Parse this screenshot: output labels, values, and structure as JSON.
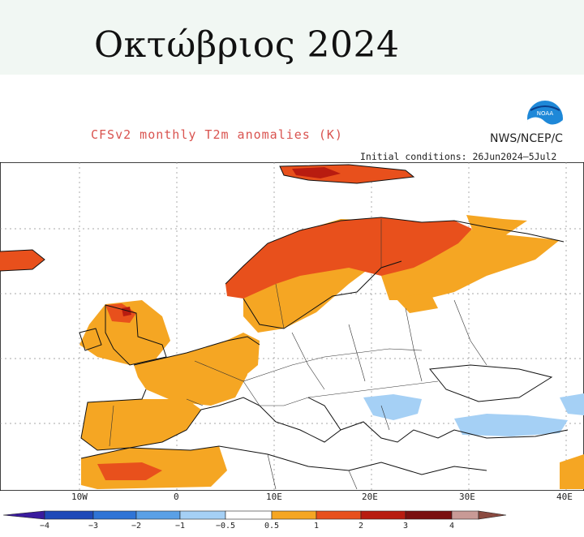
{
  "banner": {
    "title": "Οκτώβριος 2024"
  },
  "chart": {
    "title": "CFSv2 monthly T2m anomalies (K)",
    "agency": "NWS/NCEP/C",
    "initial_conditions": "Initial conditions: 26Jun2024–5Jul2"
  },
  "logo": {
    "name": "noaa-logo",
    "text": "NOAA"
  },
  "map": {
    "region": "Europe",
    "grid": true,
    "longitude_labels": [
      "10W",
      "0",
      "10E",
      "20E",
      "30E",
      "40E"
    ],
    "anomalies": [
      {
        "area": "Scandinavia",
        "category": "2 to 3"
      },
      {
        "area": "Finland / NW Russia",
        "category": "1 to 2"
      },
      {
        "area": "Iceland",
        "category": "2 to 3"
      },
      {
        "area": "Scotland",
        "category": "2 to 3"
      },
      {
        "area": "Ireland / UK",
        "category": "0.5 to 1"
      },
      {
        "area": "France",
        "category": "0.5 to 1"
      },
      {
        "area": "Iberia",
        "category": "0.5 to 1"
      },
      {
        "area": "Morocco",
        "category": "2 to 3"
      },
      {
        "area": "North Africa",
        "category": "0.5 to 1"
      },
      {
        "area": "Balkans",
        "category": "-1 to -0.5"
      },
      {
        "area": "Turkey",
        "category": "-1 to -0.5"
      },
      {
        "area": "Svalbard",
        "category": "2 to 3"
      }
    ]
  },
  "colorbar": {
    "ticks": [
      "−4",
      "−3",
      "−2",
      "−1",
      "−0.5",
      "0.5",
      "1",
      "2",
      "3",
      "4"
    ],
    "colors": [
      "#3a1b9e",
      "#1f49b8",
      "#2f74d6",
      "#5aa0e6",
      "#a5d0f5",
      "#ffffff",
      "#f5a623",
      "#e8501c",
      "#b81c10",
      "#7a1010",
      "#c89a96",
      "#8a4a40"
    ]
  }
}
